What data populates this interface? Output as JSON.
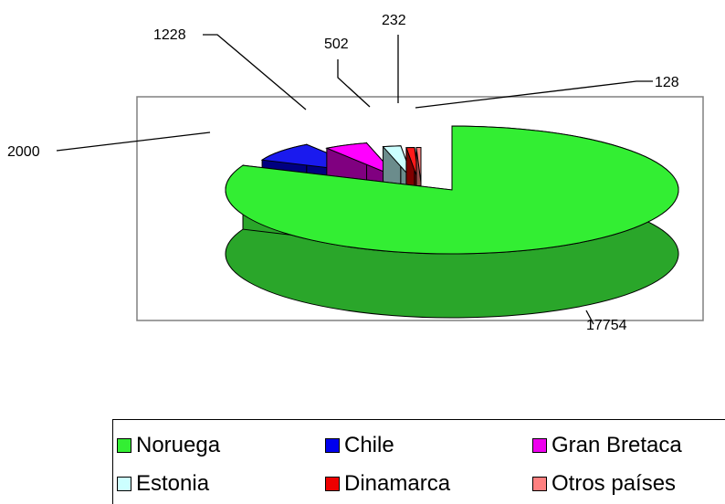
{
  "chart_data": {
    "type": "pie",
    "title": "",
    "slices": [
      {
        "label": "Noruega",
        "value": 17754,
        "color": "#33ee33",
        "side": "#2aa62a",
        "top": "#33ee33"
      },
      {
        "label": "Chile",
        "value": 2000,
        "color": "#0000ee",
        "side": "#000080",
        "top": "#1a1aee"
      },
      {
        "label": "Gran Bretaca",
        "value": 1228,
        "color": "#ee00ee",
        "side": "#800080",
        "top": "#ff00ff"
      },
      {
        "label": "Estonia",
        "value": 502,
        "color": "#ccffff",
        "side": "#6b8c8c",
        "top": "#ccffff"
      },
      {
        "label": "Dinamarca",
        "value": 232,
        "color": "#ee0000",
        "side": "#800000",
        "top": "#ff1a1a"
      },
      {
        "label": "Otros países",
        "value": 128,
        "color": "#ff8080",
        "side": "#9a4a4a",
        "top": "#ff8080"
      }
    ],
    "legend_position": "bottom"
  },
  "data_labels": [
    "17754",
    "2000",
    "1228",
    "502",
    "232",
    "128"
  ],
  "legend": {
    "items": [
      "Noruega",
      "Chile",
      "Gran Bretaca",
      "Estonia",
      "Dinamarca",
      "Otros países"
    ]
  }
}
